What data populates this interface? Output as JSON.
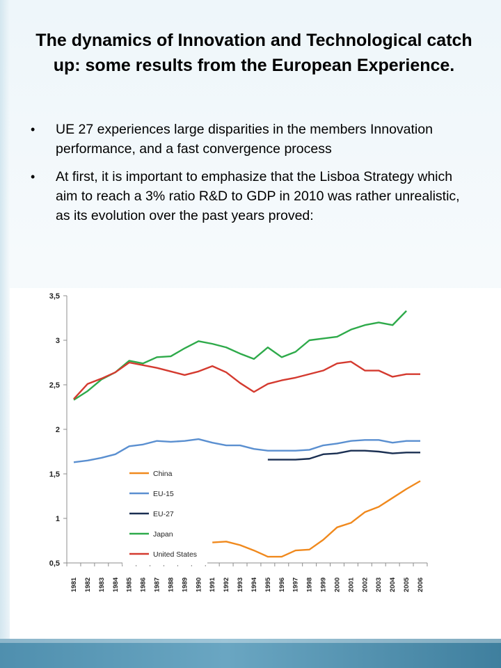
{
  "slide": {
    "title": "The dynamics of Innovation and Technological catch up: some results from the European Experience.",
    "bullets": [
      "UE 27 experiences large disparities in the members Innovation performance, and a fast convergence process",
      "At first, it is important to emphasize that the Lisboa Strategy which aim to reach a 3% ratio R&D to GDP in 2010 was rather unrealistic, as its evolution over the past years proved:"
    ],
    "bullet_glyph": "•"
  },
  "chart_data": {
    "type": "line",
    "title": "",
    "xlabel": "",
    "ylabel": "",
    "x": [
      1981,
      1982,
      1983,
      1984,
      1985,
      1986,
      1987,
      1988,
      1989,
      1990,
      1991,
      1992,
      1993,
      1994,
      1995,
      1996,
      1997,
      1998,
      1999,
      2000,
      2001,
      2002,
      2003,
      2004,
      2005,
      2006
    ],
    "ylim": [
      0.5,
      3.5
    ],
    "yticks": [
      0.5,
      1,
      1.5,
      2,
      2.5,
      3,
      3.5
    ],
    "ytick_labels": [
      "0,5",
      "1",
      "1,5",
      "2",
      "2,5",
      "3",
      "3,5"
    ],
    "grid": false,
    "legend_position": "bottom-left-inside",
    "series": [
      {
        "name": "China",
        "color": "#f0891d",
        "values": [
          null,
          null,
          null,
          null,
          null,
          null,
          null,
          null,
          null,
          null,
          0.73,
          0.74,
          0.7,
          0.64,
          0.57,
          0.57,
          0.64,
          0.65,
          0.76,
          0.9,
          0.95,
          1.07,
          1.13,
          1.23,
          1.33,
          1.42
        ]
      },
      {
        "name": "EU-15",
        "color": "#5a8fd0",
        "values": [
          1.63,
          1.65,
          1.68,
          1.72,
          1.81,
          1.83,
          1.87,
          1.86,
          1.87,
          1.89,
          1.85,
          1.82,
          1.82,
          1.78,
          1.76,
          1.76,
          1.76,
          1.77,
          1.82,
          1.84,
          1.87,
          1.88,
          1.88,
          1.85,
          1.87,
          1.87
        ]
      },
      {
        "name": "EU-27",
        "color": "#1a2f52",
        "values": [
          null,
          null,
          null,
          null,
          null,
          null,
          null,
          null,
          null,
          null,
          null,
          null,
          null,
          null,
          1.66,
          1.66,
          1.66,
          1.67,
          1.72,
          1.73,
          1.76,
          1.76,
          1.75,
          1.73,
          1.74,
          1.74
        ]
      },
      {
        "name": "Japan",
        "color": "#2eaa4a",
        "values": [
          2.33,
          2.43,
          2.56,
          2.64,
          2.77,
          2.74,
          2.81,
          2.82,
          2.91,
          2.99,
          2.96,
          2.92,
          2.85,
          2.79,
          2.92,
          2.81,
          2.87,
          3.0,
          3.02,
          3.04,
          3.12,
          3.17,
          3.2,
          3.17,
          3.33,
          null
        ]
      },
      {
        "name": "United States",
        "color": "#d43a2f",
        "values": [
          2.34,
          2.51,
          2.57,
          2.64,
          2.75,
          2.72,
          2.69,
          2.65,
          2.61,
          2.65,
          2.71,
          2.64,
          2.52,
          2.42,
          2.51,
          2.55,
          2.58,
          2.62,
          2.66,
          2.74,
          2.76,
          2.66,
          2.66,
          2.59,
          2.62,
          2.62
        ]
      }
    ]
  }
}
